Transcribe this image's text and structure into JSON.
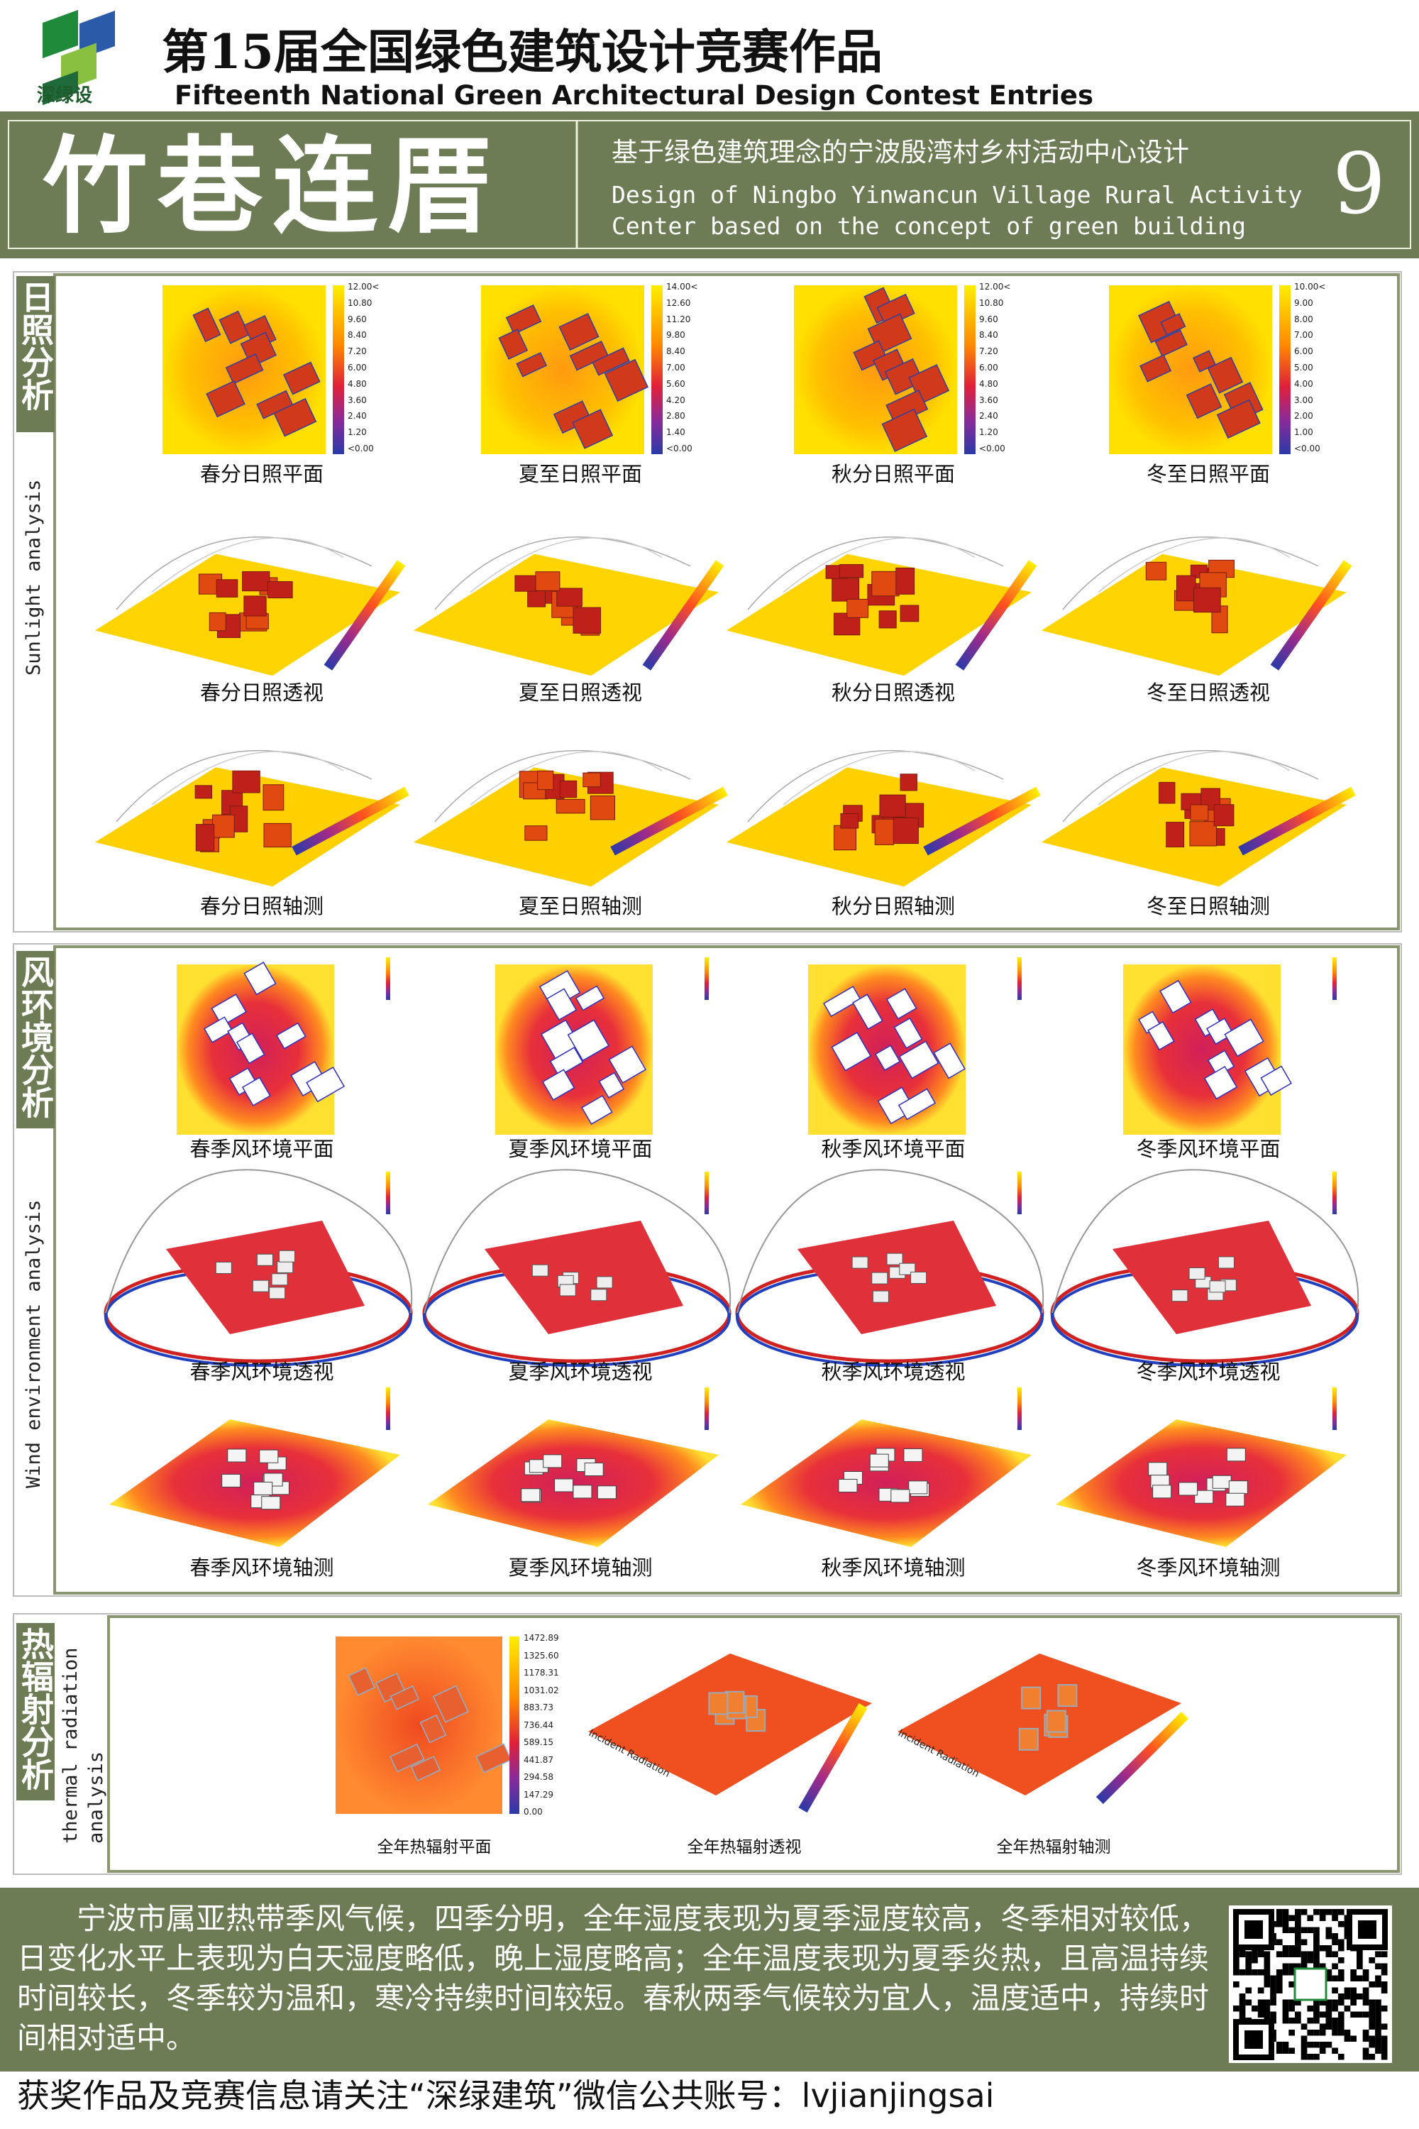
{
  "header": {
    "logo_text": "深绿设",
    "title_cn": "第15届全国绿色建筑设计竞赛作品",
    "title_en": "Fifteenth National Green Architectural Design Contest Entries"
  },
  "banner": {
    "title": "竹巷连厝",
    "subtitle_cn": "基于绿色建筑理念的宁波殷湾村乡村活动中心设计",
    "subtitle_en_1": "Design of Ningbo Yinwancun Village Rural Activity",
    "subtitle_en_2": "Center based on the concept of green building",
    "number": "9"
  },
  "sections": [
    {
      "label_cn": "日照分析",
      "label_en": "Sunlight analysis",
      "captions": [
        "春分日照平面",
        "夏至日照平面",
        "秋分日照平面",
        "冬至日照平面",
        "春分日照透视",
        "夏至日照透视",
        "秋分日照透视",
        "冬至日照透视",
        "春分日照轴测",
        "夏至日照轴测",
        "秋分日照轴测",
        "冬至日照轴测"
      ],
      "legends": [
        [
          "12.00<",
          "10.80",
          "9.60",
          "8.40",
          "7.20",
          "6.00",
          "4.80",
          "3.60",
          "2.40",
          "1.20",
          "<0.00"
        ],
        [
          "14.00<",
          "12.60",
          "11.20",
          "9.80",
          "8.40",
          "7.00",
          "5.60",
          "4.20",
          "2.80",
          "1.40",
          "<0.00"
        ],
        [
          "12.00<",
          "10.80",
          "9.60",
          "8.40",
          "7.20",
          "6.00",
          "4.80",
          "3.60",
          "2.40",
          "1.20",
          "<0.00"
        ],
        [
          "10.00<",
          "9.00",
          "8.00",
          "7.00",
          "6.00",
          "5.00",
          "4.00",
          "3.00",
          "2.00",
          "1.00",
          "<0.00"
        ]
      ]
    },
    {
      "label_cn": "风环境分析",
      "label_en": "Wind environment analysis",
      "captions": [
        "春季风环境平面",
        "夏季风环境平面",
        "秋季风环境平面",
        "冬季风环境平面",
        "春季风环境透视",
        "夏季风环境透视",
        "秋季风环境透视",
        "冬季风环境透视",
        "春季风环境轴测",
        "夏季风环境轴测",
        "秋季风环境轴测",
        "冬季风环境轴测"
      ]
    },
    {
      "label_cn": "热辐射分析",
      "label_en": "thermal radiation analysis",
      "captions": [
        "全年热辐射平面",
        "全年热辐射透视",
        "全年热辐射轴测"
      ],
      "legend": [
        "1472.89",
        "1325.60",
        "1178.31",
        "1031.02",
        "883.73",
        "736.44",
        "589.15",
        "441.87",
        "294.58",
        "147.29",
        "0.00"
      ],
      "axis_label": "Incident Radiation"
    }
  ],
  "footer": {
    "paragraph": "宁波市属亚热带季风气候，四季分明，全年湿度表现为夏季湿度较高，冬季相对较低，日变化水平上表现为白天湿度略低，晚上湿度略高；全年温度表现为夏季炎热，且高温持续时间较长，冬季较为温和，寒冷持续时间较短。春秋两季气候较为宜人，温度适中，持续时间相对适中。",
    "contact": "获奖作品及竞赛信息请关注“深绿建筑”微信公共账号：lvjianjingsai"
  }
}
